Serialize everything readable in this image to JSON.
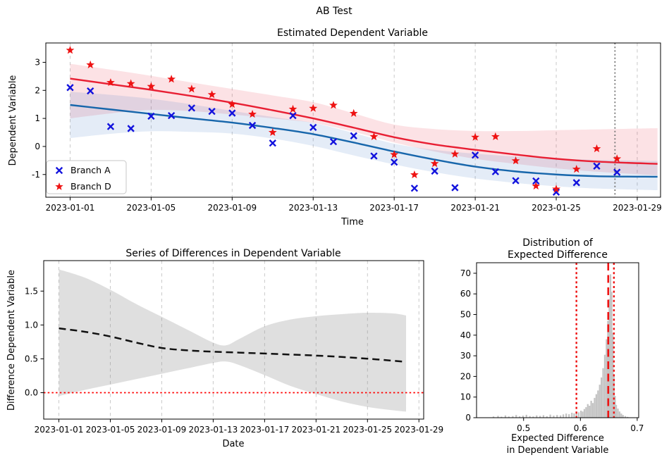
{
  "figure": {
    "suptitle": "AB Test",
    "background": "#ffffff"
  },
  "colors": {
    "branch_a_marker": "#1212dd",
    "branch_d_marker": "#ee1212",
    "branch_a_line": "#1766ab",
    "branch_d_line": "#e81f33",
    "branch_a_band": "rgba(44,108,190,0.13)",
    "branch_d_band": "rgba(232,50,70,0.14)",
    "grid": "#c9c9c9",
    "spine": "#000000",
    "today_line": "#777777",
    "diff_line": "#111111",
    "diff_band": "rgba(140,140,140,0.28)",
    "zero_line": "#ff0000",
    "hist_bar": "#c4c4c4",
    "hist_vline": "#ee1212"
  },
  "chart_data": [
    {
      "type": "scatter",
      "title": "Estimated Dependent Variable",
      "xlabel": "Time",
      "ylabel": "Dependent Variable",
      "x_tick_days": [
        0,
        4,
        8,
        12,
        16,
        20,
        24,
        28
      ],
      "x_tick_labels": [
        "2023-01-01",
        "2023-01-05",
        "2023-01-09",
        "2023-01-13",
        "2023-01-17",
        "2023-01-21",
        "2023-01-25",
        "2023-01-29"
      ],
      "y_ticks": [
        -1,
        0,
        1,
        2,
        3
      ],
      "x_range_days": [
        -1.2,
        29.15
      ],
      "y_range": [
        -1.81,
        3.69
      ],
      "today_marker_day": 26.9,
      "legend": [
        {
          "label": "Branch A",
          "marker": "x"
        },
        {
          "label": "Branch D",
          "marker": "star"
        }
      ],
      "branch_a_points": [
        [
          0,
          2.1
        ],
        [
          1,
          1.98
        ],
        [
          2,
          0.71
        ],
        [
          3,
          0.64
        ],
        [
          4,
          1.08
        ],
        [
          5,
          1.1
        ],
        [
          6,
          1.37
        ],
        [
          7,
          1.25
        ],
        [
          8,
          1.19
        ],
        [
          9,
          0.75
        ],
        [
          10,
          0.12
        ],
        [
          11,
          1.1
        ],
        [
          12,
          0.68
        ],
        [
          13,
          0.17
        ],
        [
          14,
          0.38
        ],
        [
          15,
          -0.34
        ],
        [
          16,
          -0.56
        ],
        [
          17,
          -1.49
        ],
        [
          18,
          -0.88
        ],
        [
          19,
          -1.47
        ],
        [
          20,
          -0.31
        ],
        [
          21,
          -0.9
        ],
        [
          22,
          -1.22
        ],
        [
          23,
          -1.23
        ],
        [
          24,
          -1.63
        ],
        [
          25,
          -1.29
        ],
        [
          26,
          -0.7
        ],
        [
          27,
          -0.92
        ]
      ],
      "branch_d_points": [
        [
          0,
          3.43
        ],
        [
          1,
          2.91
        ],
        [
          2,
          2.28
        ],
        [
          3,
          2.24
        ],
        [
          4,
          2.14
        ],
        [
          5,
          2.4
        ],
        [
          6,
          2.05
        ],
        [
          7,
          1.85
        ],
        [
          8,
          1.5
        ],
        [
          9,
          1.15
        ],
        [
          10,
          0.5
        ],
        [
          11,
          1.33
        ],
        [
          12,
          1.36
        ],
        [
          13,
          1.47
        ],
        [
          14,
          1.18
        ],
        [
          15,
          0.35
        ],
        [
          16,
          -0.29
        ],
        [
          17,
          -1.01
        ],
        [
          18,
          -0.61
        ],
        [
          19,
          -0.27
        ],
        [
          20,
          0.33
        ],
        [
          21,
          0.35
        ],
        [
          22,
          -0.51
        ],
        [
          23,
          -1.41
        ],
        [
          24,
          -1.52
        ],
        [
          25,
          -0.81
        ],
        [
          26,
          -0.08
        ],
        [
          27,
          -0.44
        ]
      ],
      "branch_a_trend": [
        [
          0,
          1.48
        ],
        [
          2,
          1.32
        ],
        [
          4,
          1.16
        ],
        [
          6,
          1.0
        ],
        [
          8,
          0.85
        ],
        [
          10,
          0.66
        ],
        [
          12,
          0.44
        ],
        [
          14,
          0.14
        ],
        [
          16,
          -0.18
        ],
        [
          18,
          -0.47
        ],
        [
          20,
          -0.72
        ],
        [
          22,
          -0.89
        ],
        [
          24,
          -1.0
        ],
        [
          26,
          -1.06
        ],
        [
          29,
          -1.08
        ]
      ],
      "branch_d_trend": [
        [
          0,
          2.42
        ],
        [
          2,
          2.22
        ],
        [
          4,
          2.02
        ],
        [
          6,
          1.8
        ],
        [
          8,
          1.56
        ],
        [
          10,
          1.29
        ],
        [
          12,
          1.0
        ],
        [
          14,
          0.67
        ],
        [
          16,
          0.33
        ],
        [
          18,
          0.07
        ],
        [
          20,
          -0.12
        ],
        [
          22,
          -0.29
        ],
        [
          24,
          -0.44
        ],
        [
          26,
          -0.54
        ],
        [
          29,
          -0.62
        ]
      ],
      "branch_a_band_upper": [
        [
          0,
          1.95
        ],
        [
          2,
          1.84
        ],
        [
          4,
          1.7
        ],
        [
          6,
          1.5
        ],
        [
          8,
          1.27
        ],
        [
          10,
          1.05
        ],
        [
          12,
          0.84
        ],
        [
          14,
          0.48
        ],
        [
          16,
          0.1
        ],
        [
          18,
          -0.12
        ],
        [
          20,
          -0.26
        ],
        [
          22,
          -0.36
        ],
        [
          24,
          -0.43
        ],
        [
          26,
          -0.48
        ],
        [
          29,
          -0.52
        ]
      ],
      "branch_a_band_lower": [
        [
          0,
          0.3
        ],
        [
          2,
          0.45
        ],
        [
          4,
          0.54
        ],
        [
          6,
          0.52
        ],
        [
          8,
          0.46
        ],
        [
          10,
          0.28
        ],
        [
          12,
          0.02
        ],
        [
          14,
          -0.32
        ],
        [
          16,
          -0.64
        ],
        [
          18,
          -0.92
        ],
        [
          20,
          -1.14
        ],
        [
          22,
          -1.3
        ],
        [
          24,
          -1.42
        ],
        [
          26,
          -1.5
        ],
        [
          29,
          -1.56
        ]
      ],
      "branch_d_band_upper": [
        [
          0,
          2.95
        ],
        [
          2,
          2.74
        ],
        [
          4,
          2.52
        ],
        [
          6,
          2.28
        ],
        [
          8,
          2.05
        ],
        [
          10,
          1.82
        ],
        [
          12,
          1.58
        ],
        [
          14,
          1.18
        ],
        [
          16,
          0.78
        ],
        [
          18,
          0.62
        ],
        [
          20,
          0.55
        ],
        [
          22,
          0.55
        ],
        [
          24,
          0.58
        ],
        [
          26,
          0.61
        ],
        [
          29,
          0.65
        ]
      ],
      "branch_d_band_lower": [
        [
          0,
          1.0
        ],
        [
          2,
          1.18
        ],
        [
          4,
          1.3
        ],
        [
          6,
          1.26
        ],
        [
          8,
          1.14
        ],
        [
          10,
          1.0
        ],
        [
          12,
          0.84
        ],
        [
          14,
          0.52
        ],
        [
          16,
          0.14
        ],
        [
          18,
          -0.18
        ],
        [
          20,
          -0.44
        ],
        [
          22,
          -0.62
        ],
        [
          24,
          -0.78
        ],
        [
          26,
          -0.9
        ],
        [
          29,
          -1.03
        ]
      ]
    },
    {
      "type": "line",
      "title": "Series of Differences in Dependent Variable",
      "xlabel": "Date",
      "ylabel": "Difference Dependent Variable",
      "x_tick_days": [
        0,
        4,
        8,
        12,
        16,
        20,
        24,
        28
      ],
      "x_tick_labels": [
        "2023-01-01",
        "2023-01-05",
        "2023-01-09",
        "2023-01-13",
        "2023-01-17",
        "2023-01-21",
        "2023-01-25",
        "2023-01-29"
      ],
      "y_ticks": [
        0.0,
        0.5,
        1.0,
        1.5
      ],
      "x_range_days": [
        -1.18,
        28.37
      ],
      "y_range": [
        -0.39,
        1.95
      ],
      "zero_line_y": 0.0,
      "line": [
        [
          0,
          0.95
        ],
        [
          2,
          0.9
        ],
        [
          4,
          0.83
        ],
        [
          6,
          0.74
        ],
        [
          8,
          0.66
        ],
        [
          10,
          0.625
        ],
        [
          12,
          0.605
        ],
        [
          14,
          0.592
        ],
        [
          16,
          0.578
        ],
        [
          18,
          0.563
        ],
        [
          20,
          0.548
        ],
        [
          22,
          0.528
        ],
        [
          24,
          0.502
        ],
        [
          26,
          0.472
        ],
        [
          27,
          0.455
        ]
      ],
      "band_upper": [
        [
          0,
          1.82
        ],
        [
          2,
          1.7
        ],
        [
          4,
          1.52
        ],
        [
          6,
          1.31
        ],
        [
          8,
          1.12
        ],
        [
          10,
          0.93
        ],
        [
          12,
          0.74
        ],
        [
          13,
          0.7
        ],
        [
          14,
          0.79
        ],
        [
          16,
          0.98
        ],
        [
          18,
          1.08
        ],
        [
          20,
          1.13
        ],
        [
          22,
          1.16
        ],
        [
          24,
          1.18
        ],
        [
          26,
          1.17
        ],
        [
          27,
          1.14
        ]
      ],
      "band_lower": [
        [
          0,
          -0.05
        ],
        [
          2,
          0.04
        ],
        [
          4,
          0.12
        ],
        [
          6,
          0.2
        ],
        [
          8,
          0.28
        ],
        [
          10,
          0.36
        ],
        [
          12,
          0.44
        ],
        [
          13,
          0.46
        ],
        [
          14,
          0.41
        ],
        [
          16,
          0.26
        ],
        [
          18,
          0.1
        ],
        [
          20,
          -0.02
        ],
        [
          22,
          -0.13
        ],
        [
          24,
          -0.21
        ],
        [
          26,
          -0.26
        ],
        [
          27,
          -0.28
        ]
      ]
    },
    {
      "type": "histogram",
      "title_lines": [
        "Distribution of",
        "Expected Difference"
      ],
      "xlabel_lines": [
        "Expected Difference",
        "in Dependent Variable"
      ],
      "x_ticks": [
        0.5,
        0.6,
        0.7
      ],
      "y_ticks": [
        0,
        10,
        20,
        30,
        40,
        50,
        60,
        70
      ],
      "x_range": [
        0.4172,
        0.7026
      ],
      "y_range": [
        0,
        75.1
      ],
      "bin_width": 0.0028,
      "vlines": [
        {
          "x": 0.593,
          "style": "dotted"
        },
        {
          "x": 0.649,
          "style": "dashed"
        },
        {
          "x": 0.659,
          "style": "dotted"
        }
      ],
      "bins": [
        [
          0.447,
          0.6
        ],
        [
          0.455,
          0.9
        ],
        [
          0.461,
          0.5
        ],
        [
          0.468,
          1.1
        ],
        [
          0.474,
          0.6
        ],
        [
          0.481,
          0.8
        ],
        [
          0.487,
          1.3
        ],
        [
          0.493,
          0.7
        ],
        [
          0.499,
          1.0
        ],
        [
          0.505,
          1.4
        ],
        [
          0.511,
          0.8
        ],
        [
          0.517,
          0.6
        ],
        [
          0.523,
          1.1
        ],
        [
          0.529,
          0.9
        ],
        [
          0.535,
          1.2
        ],
        [
          0.541,
          0.7
        ],
        [
          0.547,
          1.5
        ],
        [
          0.553,
          1.0
        ],
        [
          0.559,
          1.3
        ],
        [
          0.565,
          1.1
        ],
        [
          0.57,
          1.6
        ],
        [
          0.575,
          2.0
        ],
        [
          0.58,
          1.7
        ],
        [
          0.585,
          2.4
        ],
        [
          0.589,
          2.1
        ],
        [
          0.593,
          2.9
        ],
        [
          0.597,
          2.6
        ],
        [
          0.601,
          3.4
        ],
        [
          0.604,
          3.0
        ],
        [
          0.607,
          4.2
        ],
        [
          0.61,
          5.1
        ],
        [
          0.613,
          6.6
        ],
        [
          0.616,
          5.8
        ],
        [
          0.619,
          8.2
        ],
        [
          0.622,
          7.1
        ],
        [
          0.625,
          9.6
        ],
        [
          0.628,
          11.4
        ],
        [
          0.631,
          13.2
        ],
        [
          0.634,
          16.0
        ],
        [
          0.637,
          19.5
        ],
        [
          0.64,
          24.0
        ],
        [
          0.643,
          30.5
        ],
        [
          0.646,
          38.0
        ],
        [
          0.6485,
          47.0
        ],
        [
          0.651,
          57.5
        ],
        [
          0.653,
          69.5
        ],
        [
          0.655,
          61.0
        ],
        [
          0.657,
          41.0
        ],
        [
          0.659,
          21.0
        ],
        [
          0.661,
          10.5
        ],
        [
          0.663,
          6.2
        ],
        [
          0.666,
          4.4
        ],
        [
          0.669,
          3.0
        ],
        [
          0.672,
          2.0
        ],
        [
          0.675,
          1.3
        ],
        [
          0.679,
          0.8
        ],
        [
          0.683,
          0.4
        ]
      ]
    }
  ]
}
